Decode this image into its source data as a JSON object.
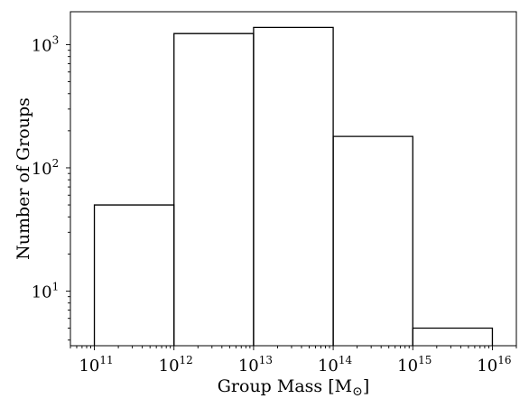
{
  "chart_data": {
    "type": "bar",
    "histogram": true,
    "xscale": "log",
    "yscale": "log",
    "xlabel": "Group Mass [M",
    "xlabel_unit_symbol": "⊙",
    "xlabel_close": "]",
    "ylabel": "Number of Groups",
    "bins": [
      {
        "low": 100000000000.0,
        "high": 1000000000000.0,
        "count": 50
      },
      {
        "low": 1000000000000.0,
        "high": 10000000000000.0,
        "count": 1230
      },
      {
        "low": 10000000000000.0,
        "high": 100000000000000.0,
        "count": 1380
      },
      {
        "low": 100000000000000.0,
        "high": 1000000000000000.0,
        "count": 180
      },
      {
        "low": 1000000000000000.0,
        "high": 1e+16,
        "count": 5
      }
    ],
    "xlim": [
      50000000000.0,
      2e+16
    ],
    "ylim": [
      3.6,
      1850
    ],
    "xticks": [
      {
        "value": 100000000000.0,
        "base": "10",
        "exp": "11"
      },
      {
        "value": 1000000000000.0,
        "base": "10",
        "exp": "12"
      },
      {
        "value": 10000000000000.0,
        "base": "10",
        "exp": "13"
      },
      {
        "value": 100000000000000.0,
        "base": "10",
        "exp": "14"
      },
      {
        "value": 1000000000000000.0,
        "base": "10",
        "exp": "15"
      },
      {
        "value": 1e+16,
        "base": "10",
        "exp": "16"
      }
    ],
    "yticks": [
      {
        "value": 10,
        "base": "10",
        "exp": "1"
      },
      {
        "value": 100,
        "base": "10",
        "exp": "2"
      },
      {
        "value": 1000,
        "base": "10",
        "exp": "3"
      }
    ],
    "grid": false,
    "legend": "none"
  }
}
